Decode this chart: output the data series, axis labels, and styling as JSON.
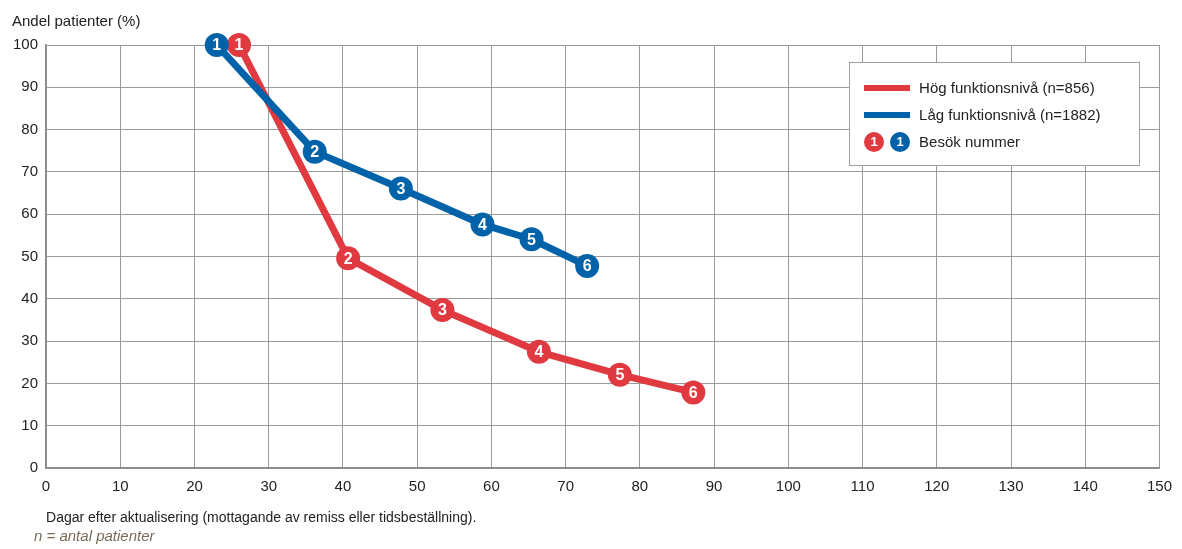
{
  "chart_data": {
    "type": "line",
    "xlabel": "Dagar efter aktualisering (mottagande av remiss eller tidsbeställning).",
    "ylabel": "Andel patienter (%)",
    "series": [
      {
        "name": "Hög funktionsnivå (n=856)",
        "color": "#e03a40",
        "x": [
          26,
          40.7,
          53.4,
          66.4,
          77.3,
          87.2
        ],
        "values": [
          100,
          49.6,
          37.4,
          27.5,
          22.1,
          17.9
        ]
      },
      {
        "name": "Låg funktionsnivå (n=1882)",
        "color": "#0062a8",
        "x": [
          23,
          36.2,
          47.8,
          58.8,
          65.4,
          72.9
        ],
        "values": [
          100,
          74.8,
          66.1,
          57.6,
          54.1,
          47.8
        ]
      }
    ],
    "xlim": [
      0,
      150
    ],
    "xticks": [
      0,
      10,
      20,
      30,
      40,
      50,
      60,
      70,
      80,
      90,
      100,
      110,
      120,
      130,
      140,
      150
    ],
    "ylim": [
      0,
      100
    ],
    "yticks": [
      0,
      10,
      20,
      30,
      40,
      50,
      60,
      70,
      80,
      90,
      100
    ],
    "grid": true,
    "legend": "top right",
    "marker": "circle",
    "line_style": "solid",
    "annotations": [
      {
        "text": "1",
        "x": 26,
        "y": 100
      },
      {
        "text": "2",
        "x": 40.7,
        "y": 49.6
      },
      {
        "text": "3",
        "x": 53.4,
        "y": 37.4
      },
      {
        "text": "4",
        "x": 66.4,
        "y": 27.5
      },
      {
        "text": "5",
        "x": 77.3,
        "y": 22.1
      },
      {
        "text": "6",
        "x": 87.2,
        "y": 17.9
      },
      {
        "text": "1",
        "x": 23,
        "y": 100
      },
      {
        "text": "2",
        "x": 36.2,
        "y": 74.8
      },
      {
        "text": "3",
        "x": 47.8,
        "y": 66.1
      },
      {
        "text": "4",
        "x": 58.8,
        "y": 57.6
      },
      {
        "text": "5",
        "x": 65.4,
        "y": 54.1
      },
      {
        "text": "6",
        "x": 72.9,
        "y": 47.8
      },
      "Besök nummer",
      "n = antal patienter"
    ]
  }
}
